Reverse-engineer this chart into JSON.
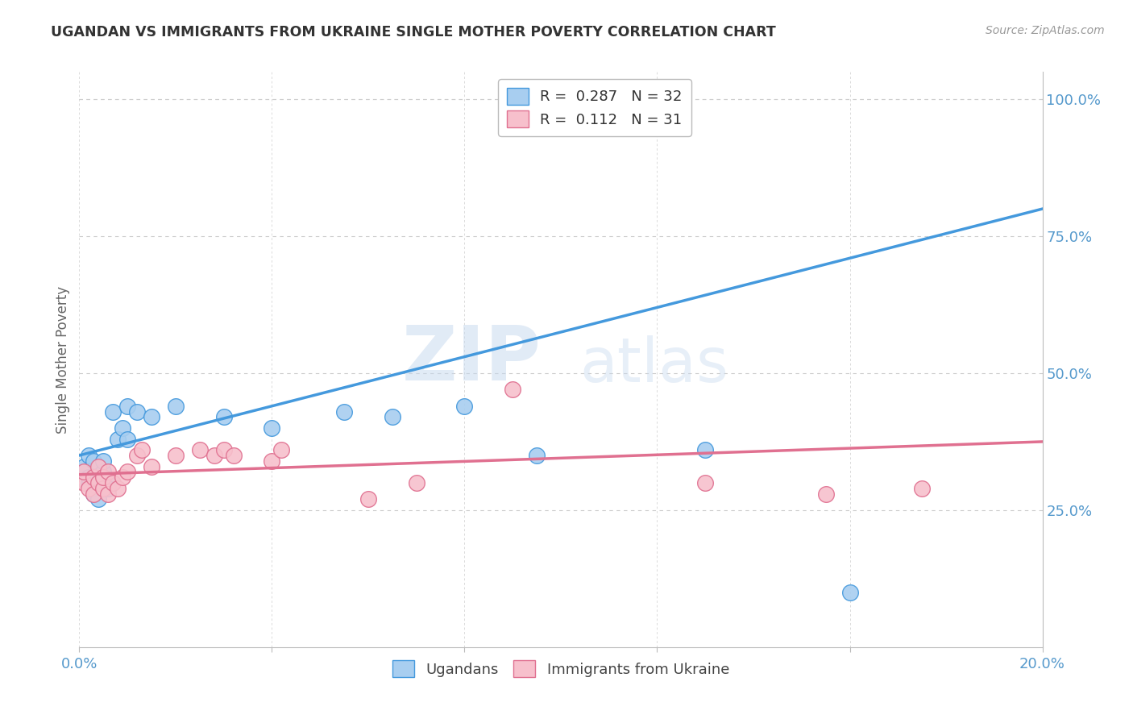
{
  "title": "UGANDAN VS IMMIGRANTS FROM UKRAINE SINGLE MOTHER POVERTY CORRELATION CHART",
  "source": "Source: ZipAtlas.com",
  "ylabel": "Single Mother Poverty",
  "xlim": [
    0.0,
    0.2
  ],
  "ylim": [
    0.0,
    1.05
  ],
  "right_yticks": [
    0.25,
    0.5,
    0.75,
    1.0
  ],
  "right_yticklabels": [
    "25.0%",
    "50.0%",
    "75.0%",
    "100.0%"
  ],
  "ugandan_color": "#A8CEF0",
  "ukraine_color": "#F7C0CC",
  "ugandan_line_color": "#4499DD",
  "ukraine_line_color": "#E07090",
  "legend_blue_label": "R =  0.287   N = 32",
  "legend_pink_label": "R =  0.112   N = 31",
  "ugandan_legend": "Ugandans",
  "ukraine_legend": "Immigrants from Ukraine",
  "watermark_zip": "ZIP",
  "watermark_atlas": "atlas",
  "background_color": "#FFFFFF",
  "grid_color": "#CCCCCC",
  "title_color": "#333333",
  "axis_label_color": "#666666",
  "tick_color": "#5599CC",
  "ugandan_x": [
    0.001,
    0.001,
    0.002,
    0.002,
    0.002,
    0.003,
    0.003,
    0.003,
    0.004,
    0.004,
    0.004,
    0.005,
    0.005,
    0.005,
    0.006,
    0.006,
    0.007,
    0.008,
    0.009,
    0.01,
    0.01,
    0.012,
    0.015,
    0.02,
    0.03,
    0.04,
    0.055,
    0.065,
    0.08,
    0.095,
    0.13,
    0.16
  ],
  "ugandan_y": [
    0.32,
    0.33,
    0.3,
    0.31,
    0.35,
    0.28,
    0.31,
    0.34,
    0.29,
    0.3,
    0.27,
    0.31,
    0.32,
    0.34,
    0.3,
    0.29,
    0.43,
    0.38,
    0.4,
    0.38,
    0.44,
    0.43,
    0.42,
    0.44,
    0.42,
    0.4,
    0.43,
    0.42,
    0.44,
    0.35,
    0.36,
    0.1
  ],
  "ukraine_x": [
    0.001,
    0.001,
    0.002,
    0.003,
    0.003,
    0.004,
    0.004,
    0.005,
    0.005,
    0.006,
    0.006,
    0.007,
    0.008,
    0.009,
    0.01,
    0.012,
    0.013,
    0.015,
    0.02,
    0.025,
    0.028,
    0.03,
    0.032,
    0.04,
    0.042,
    0.06,
    0.07,
    0.09,
    0.13,
    0.155,
    0.175
  ],
  "ukraine_y": [
    0.3,
    0.32,
    0.29,
    0.28,
    0.31,
    0.3,
    0.33,
    0.29,
    0.31,
    0.28,
    0.32,
    0.3,
    0.29,
    0.31,
    0.32,
    0.35,
    0.36,
    0.33,
    0.35,
    0.36,
    0.35,
    0.36,
    0.35,
    0.34,
    0.36,
    0.27,
    0.3,
    0.47,
    0.3,
    0.28,
    0.29
  ],
  "ug_line_x0": 0.0,
  "ug_line_y0": 0.35,
  "ug_line_x1": 0.2,
  "ug_line_y1": 0.8,
  "uk_line_x0": 0.0,
  "uk_line_y0": 0.315,
  "uk_line_x1": 0.2,
  "uk_line_y1": 0.375
}
